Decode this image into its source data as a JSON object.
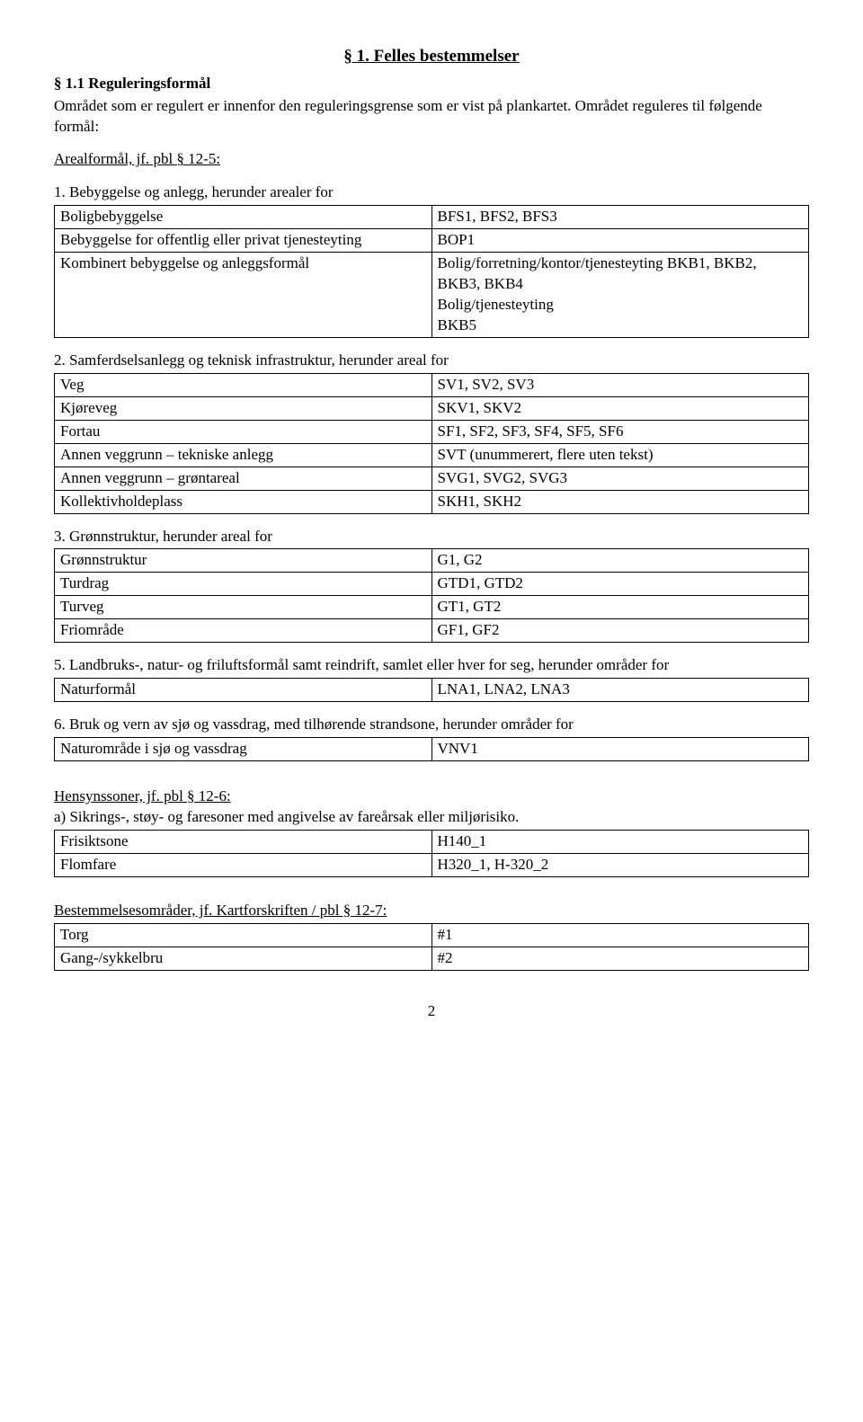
{
  "chapter_title": "§ 1. Felles bestemmelser",
  "section_1_1": {
    "heading": "§ 1.1 Reguleringsformål",
    "para1": "Området som er regulert er innenfor den reguleringsgrense som er vist på plankartet. Området reguleres til følgende formål:",
    "areal_heading": "Arealformål, jf. pbl § 12-5:"
  },
  "grp1": {
    "intro": "1. Bebyggelse og anlegg, herunder arealer for",
    "rows": [
      [
        "Boligbebyggelse",
        "BFS1, BFS2, BFS3"
      ],
      [
        "Bebyggelse for offentlig eller privat tjenesteyting",
        "BOP1"
      ],
      [
        "Kombinert bebyggelse og anleggsformål",
        "Bolig/forretning/kontor/tjenesteyting BKB1, BKB2, BKB3, BKB4\nBolig/tjenesteyting\nBKB5"
      ]
    ]
  },
  "grp2": {
    "intro": "2. Samferdselsanlegg og teknisk infrastruktur, herunder areal for",
    "rows": [
      [
        "Veg",
        "SV1, SV2, SV3"
      ],
      [
        "Kjøreveg",
        "SKV1, SKV2"
      ],
      [
        "Fortau",
        "SF1, SF2, SF3, SF4, SF5, SF6"
      ],
      [
        "Annen veggrunn – tekniske anlegg",
        "SVT (unummerert, flere uten tekst)"
      ],
      [
        "Annen veggrunn – grøntareal",
        "SVG1, SVG2, SVG3"
      ],
      [
        "Kollektivholdeplass",
        "SKH1, SKH2"
      ]
    ]
  },
  "grp3": {
    "intro": "3. Grønnstruktur, herunder areal for",
    "rows": [
      [
        "Grønnstruktur",
        "G1, G2"
      ],
      [
        "Turdrag",
        "GTD1, GTD2"
      ],
      [
        "Turveg",
        "GT1, GT2"
      ],
      [
        "Friområde",
        "GF1, GF2"
      ]
    ]
  },
  "grp5": {
    "intro": "5. Landbruks-, natur- og friluftsformål samt reindrift, samlet eller hver for seg, herunder områder for",
    "rows": [
      [
        "Naturformål",
        "LNA1, LNA2, LNA3"
      ]
    ]
  },
  "grp6": {
    "intro": "6. Bruk og vern av sjø og vassdrag, med tilhørende strandsone, herunder områder for",
    "rows": [
      [
        "Naturområde i sjø og vassdrag",
        "VNV1"
      ]
    ]
  },
  "hensyn": {
    "heading": "Hensynssoner, jf. pbl § 12-6:",
    "sub_a": "a) Sikrings-, støy- og faresoner med angivelse av fareårsak eller miljørisiko.",
    "rows": [
      [
        "Frisiktsone",
        "H140_1"
      ],
      [
        "Flomfare",
        "H320_1, H-320_2"
      ]
    ]
  },
  "bestemm": {
    "heading": "Bestemmelsesområder, jf. Kartforskriften / pbl § 12-7:",
    "rows": [
      [
        "Torg",
        "#1"
      ],
      [
        "Gang-/sykkelbru",
        "#2"
      ]
    ]
  },
  "page_number": "2"
}
